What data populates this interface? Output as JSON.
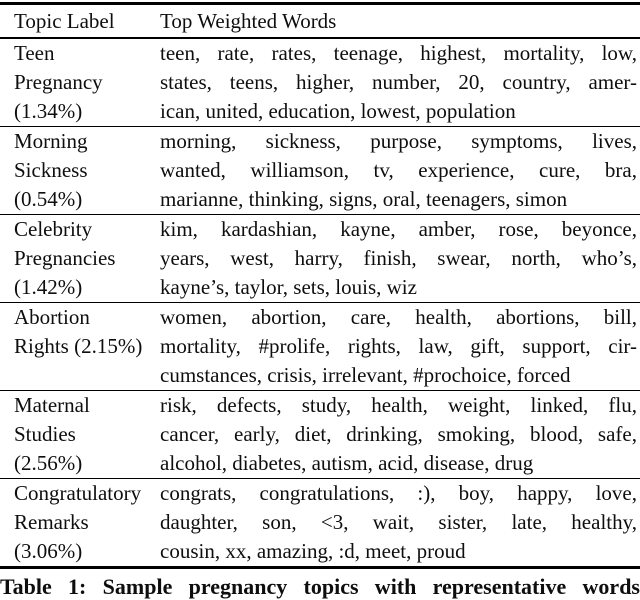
{
  "colors": {
    "background": "#ffffff",
    "text": "#0e0e0e",
    "rule": "#000000"
  },
  "table": {
    "headers": {
      "col1": "Topic Label",
      "col2": "Top Weighted Words"
    },
    "rows": [
      {
        "label_lines": [
          "Teen",
          "Pregnancy",
          "(1.34%)"
        ],
        "word_lines": [
          "teen, rate, rates, teenage, highest, mortality, low,",
          "states, teens, higher, number, 20, country, amer-",
          "ican, united, education, lowest, population"
        ]
      },
      {
        "label_lines": [
          "Morning",
          "Sickness",
          "(0.54%)"
        ],
        "word_lines": [
          "morning, sickness, purpose, symptoms, lives,",
          "wanted, williamson, tv, experience, cure, bra,",
          "marianne, thinking, signs, oral, teenagers, simon"
        ]
      },
      {
        "label_lines": [
          "Celebrity",
          "Pregnancies",
          "(1.42%)"
        ],
        "word_lines": [
          "kim, kardashian, kayne, amber, rose, beyonce,",
          "years, west, harry, finish, swear, north, who’s,",
          "kayne’s, taylor, sets, louis, wiz"
        ]
      },
      {
        "label_lines": [
          "Abortion",
          "Rights (2.15%)"
        ],
        "word_lines": [
          "women, abortion, care, health, abortions, bill,",
          "mortality, #prolife, rights, law, gift, support, cir-",
          "cumstances, crisis, irrelevant, #prochoice, forced"
        ]
      },
      {
        "label_lines": [
          "Maternal",
          "Studies",
          "(2.56%)"
        ],
        "word_lines": [
          "risk, defects, study, health, weight, linked, flu,",
          "cancer, early, diet, drinking, smoking, blood, safe,",
          "alcohol, diabetes, autism, acid, disease, drug"
        ]
      },
      {
        "label_lines": [
          "Congratulatory",
          "Remarks",
          "(3.06%)"
        ],
        "word_lines": [
          "congrats, congratulations, :), boy, happy, love,",
          "daughter, son, <3, wait, sister, late, healthy,",
          "cousin, xx, amazing, :d, meet, proud"
        ]
      }
    ],
    "caption": "Table 1: Sample pregnancy topics with representative words"
  }
}
